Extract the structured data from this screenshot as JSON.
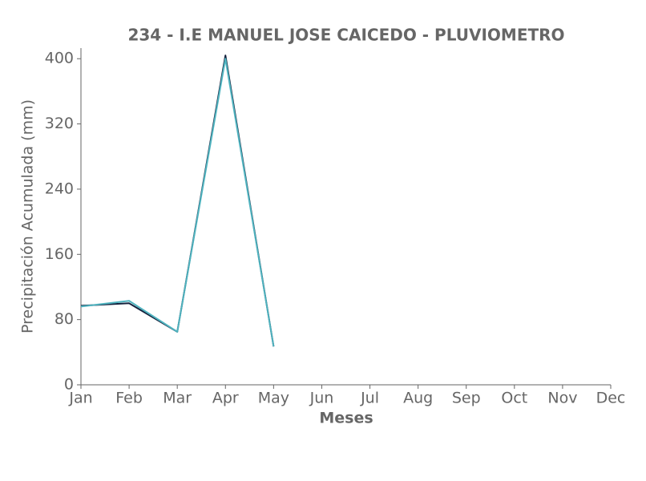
{
  "chart_data": {
    "type": "line",
    "title": "234 - I.E MANUEL JOSE CAICEDO - PLUVIOMETRO",
    "x_label": "Meses",
    "y_label": "Precipitación Acumulada (mm)",
    "categories": [
      "Jan",
      "Feb",
      "Mar",
      "Apr",
      "May",
      "Jun",
      "Jul",
      "Aug",
      "Sep",
      "Oct",
      "Nov",
      "Dec"
    ],
    "series": [
      {
        "color": "#14213d",
        "values": [
          97,
          100,
          65,
          404,
          47,
          null,
          null,
          null,
          null,
          null,
          null,
          null
        ]
      },
      {
        "color": "#4fb3bf",
        "values": [
          96,
          103,
          65,
          400,
          47,
          null,
          null,
          null,
          null,
          null,
          null,
          null
        ]
      }
    ],
    "ylim": [
      0,
      413
    ],
    "yticks": [
      0,
      80,
      160,
      240,
      320,
      400
    ],
    "grid": false
  }
}
